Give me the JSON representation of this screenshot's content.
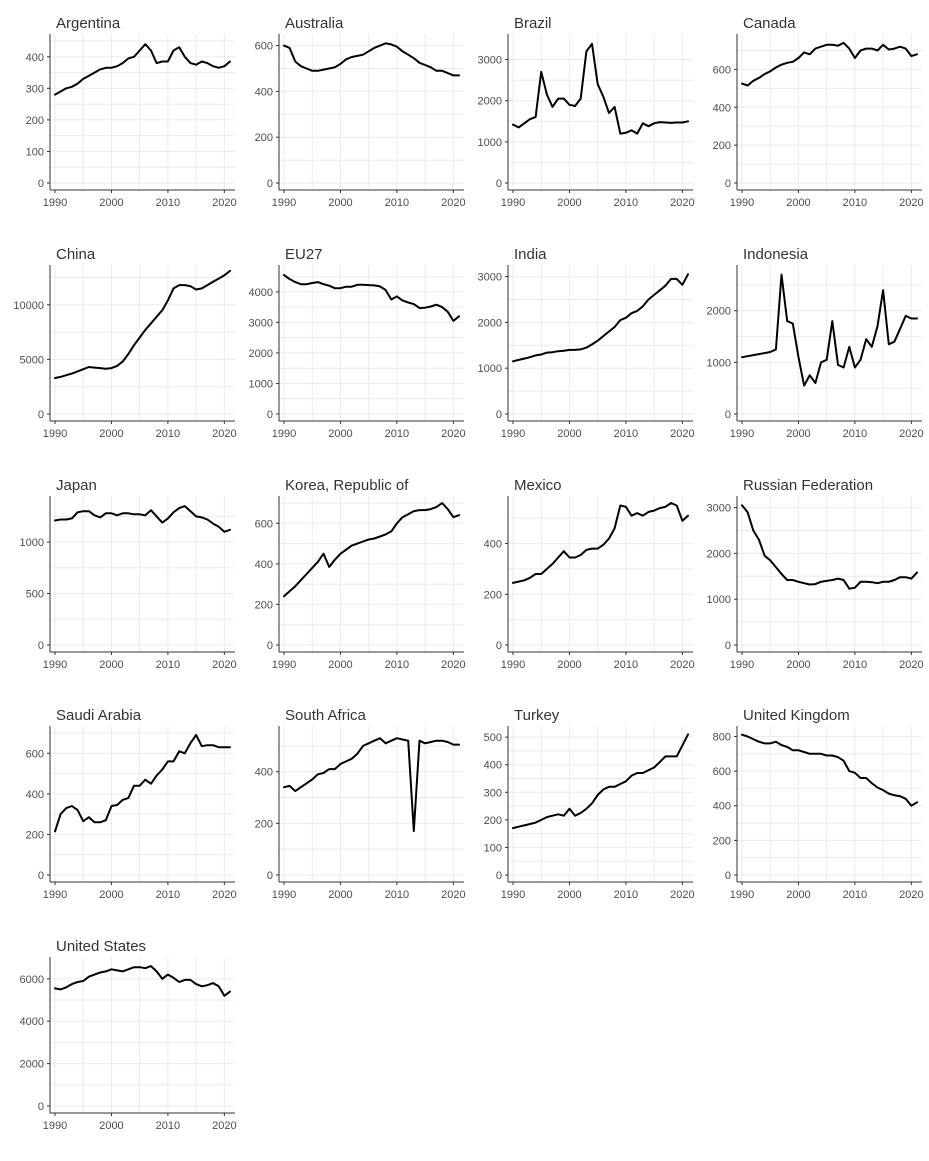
{
  "chart_data": {
    "type": "line",
    "layout": "small-multiples",
    "colors": {
      "line": "#000000",
      "grid": "#ebebeb",
      "axis": "#333333",
      "text": "#4d4d4d"
    },
    "grid": true,
    "xlim": [
      1990,
      2021
    ],
    "x_ticks": [
      1990,
      2000,
      2010,
      2020
    ],
    "x": [
      1990,
      1991,
      1992,
      1993,
      1994,
      1995,
      1996,
      1997,
      1998,
      1999,
      2000,
      2001,
      2002,
      2003,
      2004,
      2005,
      2006,
      2007,
      2008,
      2009,
      2010,
      2011,
      2012,
      2013,
      2014,
      2015,
      2016,
      2017,
      2018,
      2019,
      2020,
      2021
    ],
    "panels": [
      {
        "title": "Argentina",
        "ylim": [
          0,
          450
        ],
        "yticks": [
          0,
          100,
          200,
          300,
          400
        ],
        "values": [
          280,
          290,
          300,
          305,
          315,
          330,
          340,
          350,
          360,
          365,
          365,
          370,
          380,
          395,
          400,
          420,
          440,
          420,
          380,
          385,
          385,
          420,
          430,
          400,
          380,
          375,
          385,
          380,
          370,
          365,
          370,
          385
        ]
      },
      {
        "title": "Australia",
        "ylim": [
          0,
          620
        ],
        "yticks": [
          0,
          200,
          400,
          600
        ],
        "values": [
          600,
          590,
          530,
          510,
          500,
          490,
          490,
          495,
          500,
          505,
          520,
          540,
          550,
          555,
          560,
          575,
          590,
          600,
          610,
          605,
          595,
          575,
          560,
          545,
          525,
          515,
          505,
          490,
          490,
          480,
          470,
          470
        ]
      },
      {
        "title": "Brazil",
        "ylim": [
          0,
          3450
        ],
        "yticks": [
          0,
          1000,
          2000,
          3000
        ],
        "values": [
          1420,
          1350,
          1450,
          1550,
          1600,
          2700,
          2150,
          1850,
          2050,
          2050,
          1900,
          1870,
          2050,
          3200,
          3380,
          2400,
          2100,
          1700,
          1850,
          1200,
          1220,
          1280,
          1200,
          1450,
          1380,
          1450,
          1480,
          1470,
          1460,
          1470,
          1470,
          1500
        ]
      },
      {
        "title": "Canada",
        "ylim": [
          0,
          750
        ],
        "yticks": [
          0,
          200,
          400,
          600
        ],
        "values": [
          525,
          515,
          540,
          555,
          575,
          590,
          610,
          625,
          635,
          640,
          660,
          690,
          680,
          710,
          720,
          730,
          730,
          725,
          740,
          710,
          660,
          700,
          710,
          710,
          700,
          730,
          705,
          710,
          720,
          710,
          670,
          680
        ]
      },
      {
        "title": "China",
        "ylim": [
          0,
          13000
        ],
        "yticks": [
          0,
          5000,
          10000
        ],
        "values": [
          3300,
          3400,
          3550,
          3700,
          3900,
          4100,
          4300,
          4250,
          4200,
          4150,
          4200,
          4400,
          4800,
          5500,
          6300,
          7000,
          7700,
          8300,
          8900,
          9500,
          10400,
          11500,
          11800,
          11800,
          11700,
          11400,
          11500,
          11800,
          12100,
          12400,
          12700,
          13100
        ]
      },
      {
        "title": "EU27",
        "ylim": [
          0,
          4650
        ],
        "yticks": [
          0,
          1000,
          2000,
          3000,
          4000
        ],
        "values": [
          4550,
          4420,
          4320,
          4250,
          4250,
          4290,
          4320,
          4250,
          4200,
          4120,
          4120,
          4170,
          4170,
          4230,
          4230,
          4220,
          4210,
          4180,
          4060,
          3750,
          3850,
          3720,
          3650,
          3600,
          3470,
          3480,
          3520,
          3580,
          3500,
          3350,
          3050,
          3200
        ]
      },
      {
        "title": "India",
        "ylim": [
          0,
          3100
        ],
        "yticks": [
          0,
          1000,
          2000,
          3000
        ],
        "values": [
          1150,
          1180,
          1210,
          1240,
          1280,
          1300,
          1340,
          1350,
          1370,
          1380,
          1400,
          1400,
          1410,
          1450,
          1520,
          1600,
          1700,
          1800,
          1900,
          2050,
          2100,
          2200,
          2250,
          2350,
          2500,
          2600,
          2700,
          2800,
          2950,
          2950,
          2820,
          3050
        ]
      },
      {
        "title": "Indonesia",
        "ylim": [
          0,
          2750
        ],
        "yticks": [
          0,
          1000,
          2000
        ],
        "values": [
          1100,
          1120,
          1140,
          1160,
          1180,
          1200,
          1250,
          2700,
          1800,
          1750,
          1100,
          550,
          750,
          600,
          1000,
          1050,
          1800,
          950,
          900,
          1300,
          900,
          1050,
          1450,
          1300,
          1700,
          2400,
          1350,
          1400,
          1650,
          1900,
          1850,
          1850
        ]
      },
      {
        "title": "Japan",
        "ylim": [
          0,
          1380
        ],
        "yticks": [
          0,
          500,
          1000
        ],
        "values": [
          1210,
          1220,
          1220,
          1230,
          1290,
          1300,
          1300,
          1260,
          1240,
          1280,
          1280,
          1260,
          1280,
          1280,
          1270,
          1270,
          1260,
          1310,
          1250,
          1190,
          1230,
          1290,
          1330,
          1350,
          1300,
          1250,
          1240,
          1220,
          1180,
          1150,
          1100,
          1120
        ]
      },
      {
        "title": "Korea, Republic of",
        "ylim": [
          0,
          700
        ],
        "yticks": [
          0,
          200,
          400,
          600
        ],
        "values": [
          240,
          265,
          290,
          320,
          350,
          380,
          410,
          450,
          385,
          420,
          450,
          470,
          490,
          500,
          510,
          520,
          525,
          535,
          545,
          560,
          600,
          630,
          645,
          660,
          665,
          665,
          670,
          680,
          700,
          670,
          630,
          640
        ]
      },
      {
        "title": "Mexico",
        "ylim": [
          0,
          560
        ],
        "yticks": [
          0,
          200,
          400
        ],
        "values": [
          245,
          250,
          255,
          265,
          280,
          280,
          300,
          320,
          345,
          370,
          345,
          345,
          355,
          375,
          380,
          380,
          395,
          420,
          460,
          550,
          545,
          510,
          520,
          510,
          525,
          530,
          540,
          545,
          560,
          550,
          490,
          510
        ]
      },
      {
        "title": "Russian Federation",
        "ylim": [
          0,
          3100
        ],
        "yticks": [
          0,
          1000,
          2000,
          3000
        ],
        "values": [
          3050,
          2900,
          2500,
          2300,
          1950,
          1850,
          1700,
          1550,
          1420,
          1420,
          1380,
          1350,
          1320,
          1330,
          1380,
          1400,
          1420,
          1450,
          1420,
          1230,
          1250,
          1380,
          1380,
          1370,
          1350,
          1380,
          1380,
          1420,
          1480,
          1480,
          1450,
          1580
        ]
      },
      {
        "title": "Saudi Arabia",
        "ylim": [
          0,
          700
        ],
        "yticks": [
          0,
          200,
          400,
          600
        ],
        "values": [
          215,
          300,
          330,
          340,
          320,
          265,
          285,
          260,
          260,
          270,
          340,
          345,
          370,
          380,
          440,
          440,
          470,
          450,
          490,
          520,
          560,
          560,
          610,
          600,
          650,
          690,
          635,
          640,
          640,
          630,
          630,
          630
        ]
      },
      {
        "title": "South Africa",
        "ylim": [
          0,
          550
        ],
        "yticks": [
          0,
          200,
          400
        ],
        "values": [
          340,
          345,
          325,
          340,
          355,
          370,
          390,
          395,
          410,
          410,
          430,
          440,
          450,
          470,
          500,
          510,
          520,
          530,
          510,
          520,
          530,
          525,
          520,
          170,
          520,
          510,
          515,
          520,
          520,
          515,
          505,
          505
        ]
      },
      {
        "title": "Turkey",
        "ylim": [
          0,
          515
        ],
        "yticks": [
          0,
          100,
          200,
          300,
          400,
          500
        ],
        "values": [
          170,
          175,
          180,
          185,
          190,
          200,
          210,
          215,
          220,
          215,
          240,
          215,
          225,
          240,
          260,
          290,
          310,
          320,
          320,
          330,
          340,
          360,
          370,
          370,
          380,
          390,
          410,
          430,
          430,
          430,
          470,
          510
        ]
      },
      {
        "title": "United Kingdom",
        "ylim": [
          0,
          820
        ],
        "yticks": [
          0,
          200,
          400,
          600,
          800
        ],
        "values": [
          810,
          800,
          785,
          770,
          760,
          760,
          770,
          750,
          740,
          720,
          720,
          710,
          700,
          700,
          700,
          690,
          690,
          680,
          660,
          600,
          590,
          560,
          560,
          530,
          505,
          490,
          470,
          460,
          455,
          440,
          400,
          420
        ]
      },
      {
        "title": "United States",
        "ylim": [
          0,
          6700
        ],
        "yticks": [
          0,
          2000,
          4000,
          6000
        ],
        "values": [
          5550,
          5500,
          5600,
          5750,
          5850,
          5900,
          6100,
          6200,
          6300,
          6350,
          6450,
          6400,
          6350,
          6450,
          6550,
          6550,
          6500,
          6600,
          6350,
          6000,
          6200,
          6050,
          5850,
          5950,
          5950,
          5750,
          5650,
          5700,
          5800,
          5650,
          5200,
          5400
        ]
      }
    ]
  }
}
